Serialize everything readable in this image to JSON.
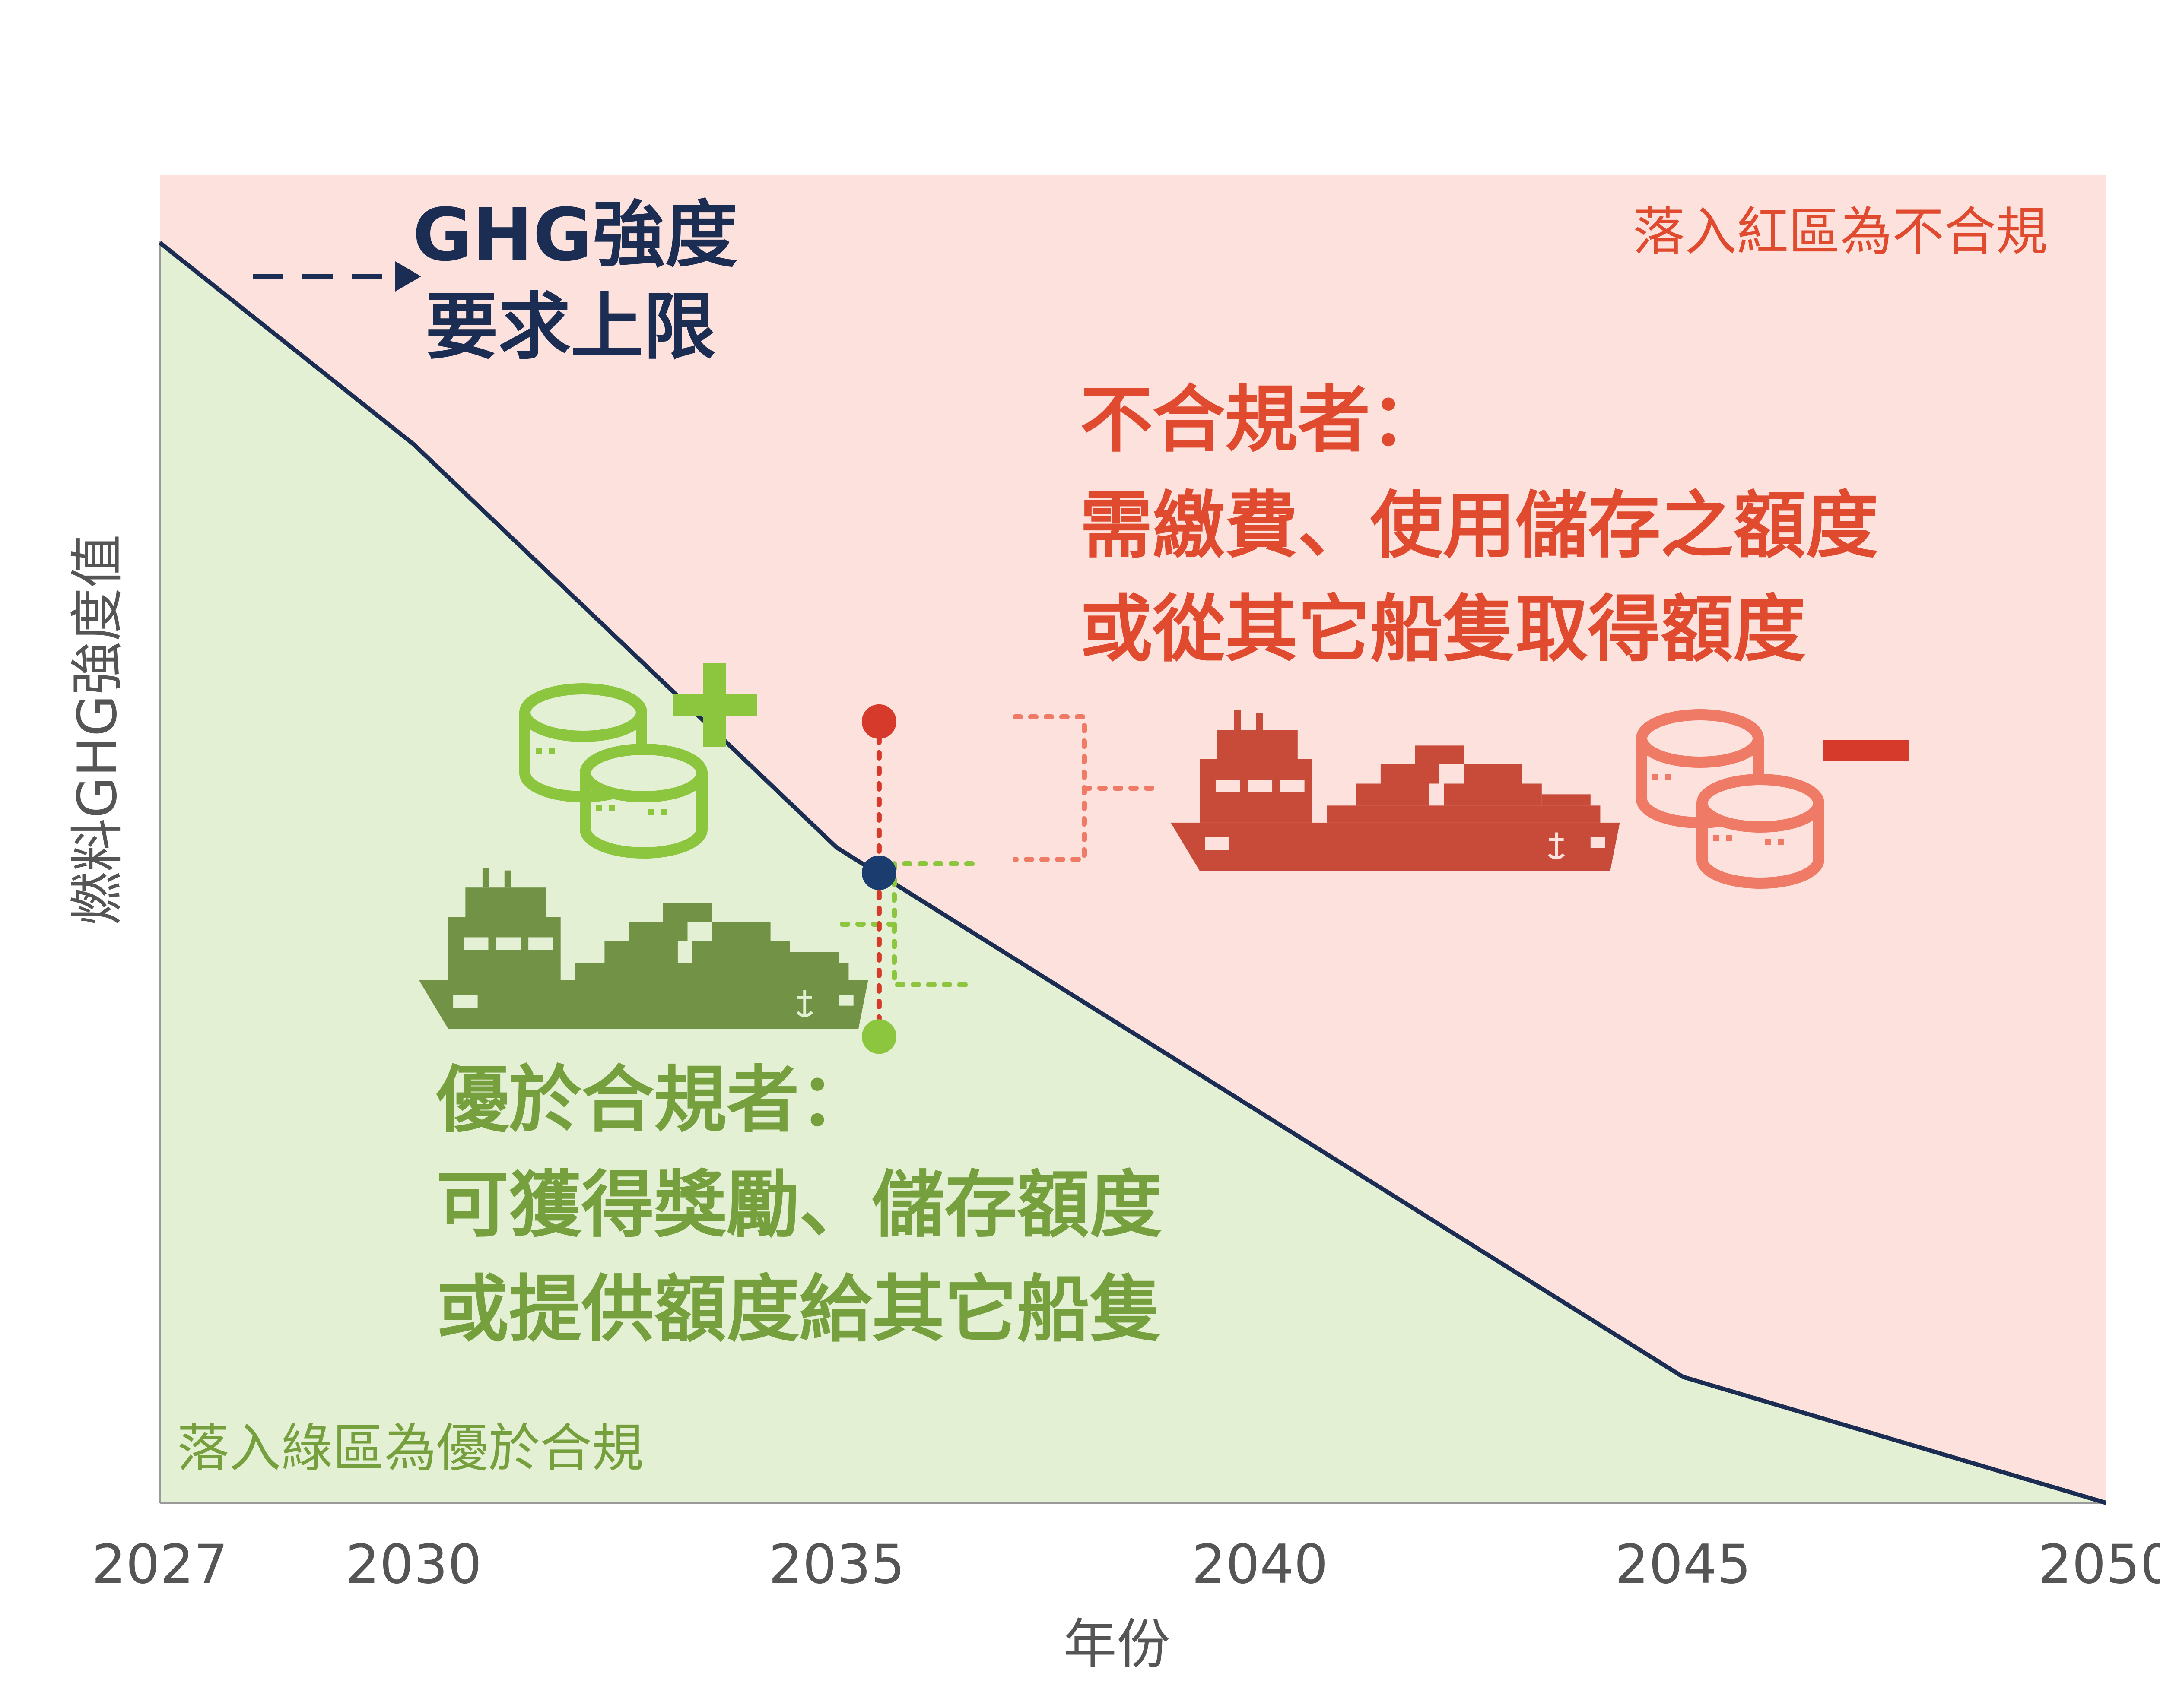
{
  "chart_data": {
    "type": "area",
    "x": [
      2027,
      2030,
      2035,
      2040,
      2045,
      2050
    ],
    "xticks": [
      "2027",
      "2030",
      "2035",
      "2040",
      "2045",
      "2050"
    ],
    "xlabel": "年份",
    "ylabel": "燃料GHG強度值",
    "xlim": [
      2027,
      2050
    ],
    "ylim": [
      0,
      100
    ],
    "limit_curve": [
      {
        "x": 2027,
        "y": 100
      },
      {
        "x": 2030,
        "y": 84
      },
      {
        "x": 2035,
        "y": 52
      },
      {
        "x": 2045,
        "y": 10
      },
      {
        "x": 2050,
        "y": 0
      }
    ],
    "limit_label": [
      "GHG強度",
      "要求上限"
    ],
    "example_year": 2035.5,
    "example_points": [
      {
        "name": "non-compliant",
        "y": 62
      },
      {
        "name": "limit",
        "y": 50
      },
      {
        "name": "over-compliant",
        "y": 37
      }
    ],
    "red_zone_label": "落入紅區為不合規",
    "green_zone_label": "落入綠區為優於合規",
    "noncompliant_text": [
      "不合規者：",
      "需繳費、使用儲存之額度",
      "或從其它船隻取得額度"
    ],
    "overcompliant_text": [
      "優於合規者：",
      "可獲得獎勵、儲存額度",
      "或提供額度給其它船隻"
    ],
    "colors": {
      "red_zone": "#fde1dd",
      "green_zone": "#e3f0d3",
      "limit_line": "#1b2d52",
      "red_text": "#e04a2e",
      "green_text": "#76a03e",
      "red_ship": "#c84a38",
      "green_ship": "#729346",
      "red_coins": "#ef7a66",
      "green_coins": "#8cc63f",
      "dot_red": "#d63a2a",
      "dot_navy": "#1b3c6e",
      "dot_green": "#8cc63f"
    },
    "icons": [
      "cargo-ship-icon",
      "coin-stack-icon",
      "plus-icon",
      "minus-icon"
    ]
  }
}
